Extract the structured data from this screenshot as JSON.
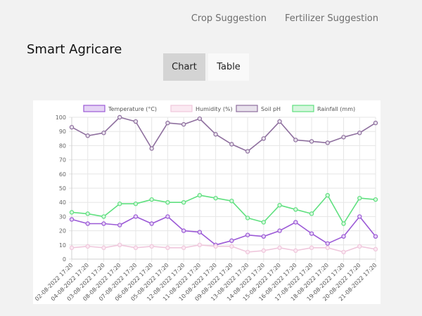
{
  "nav": {
    "crop_label": "Crop Suggestion",
    "fertilizer_label": "Fertilizer Suggestion"
  },
  "brand": {
    "title": "Smart Agricare"
  },
  "tabs": [
    {
      "label": "Chart",
      "active": true
    },
    {
      "label": "Table",
      "active": false
    }
  ],
  "chart_data": {
    "type": "line",
    "categories": [
      "02-08-2022 17:20",
      "04-08-2022 17:20",
      "03-08-2022 17:20",
      "08-08-2022 17:20",
      "07-08-2022 17:20",
      "06-08-2022 17:20",
      "05-08-2022 17:20",
      "12-08-2022 17:20",
      "11-08-2022 17:20",
      "10-08-2022 17:20",
      "09-08-2022 17:20",
      "13-08-2022 17:20",
      "14-08-2022 17:20",
      "15-08-2022 17:20",
      "16-08-2022 17:20",
      "17-08-2022 17:20",
      "18-08-2022 17:20",
      "19-08-2022 17:20",
      "20-08-2022 17:20",
      "21-08-2022 17:20"
    ],
    "series": [
      {
        "name": "Temperature (°C)",
        "color": "#9b59d6",
        "fill": "#e5d3f5",
        "values": [
          28,
          25,
          25,
          24,
          30,
          25,
          30,
          20,
          19,
          10,
          13,
          17,
          16,
          20,
          26,
          18,
          11,
          16,
          30,
          16
        ]
      },
      {
        "name": "Humidity (%)",
        "color": "#efc7dc",
        "fill": "#fbe9f2",
        "values": [
          8,
          9,
          8,
          10,
          8,
          9,
          8,
          8,
          10,
          9,
          9,
          5,
          6,
          8,
          6,
          8,
          8,
          5,
          9,
          7
        ]
      },
      {
        "name": "Soil pH",
        "color": "#8e6f9e",
        "fill": "#e8e2ec",
        "values": [
          93,
          87,
          89,
          100,
          97,
          78,
          96,
          95,
          99,
          88,
          81,
          76,
          85,
          97,
          84,
          83,
          82,
          86,
          89,
          96
        ]
      },
      {
        "name": "Rainfall (mm)",
        "color": "#5fe07f",
        "fill": "#d6f6de",
        "values": [
          33,
          32,
          30,
          39,
          39,
          42,
          40,
          40,
          45,
          43,
          41,
          29,
          26,
          38,
          35,
          32,
          45,
          25,
          43,
          42
        ]
      }
    ],
    "ylim": [
      0,
      100
    ],
    "yticks": [
      "0",
      "10",
      "20",
      "30",
      "40",
      "50",
      "60",
      "70",
      "80",
      "90",
      "100"
    ],
    "grid": true,
    "legend": "top"
  }
}
